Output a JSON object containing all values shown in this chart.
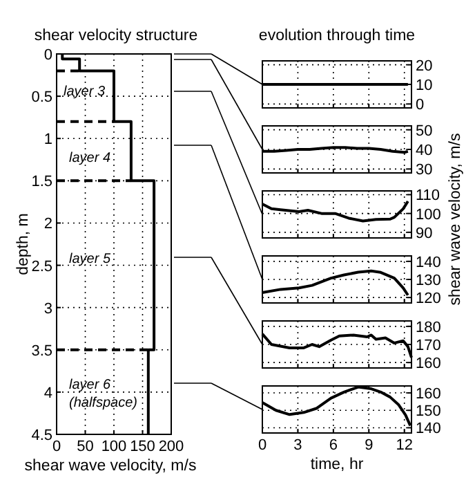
{
  "chart_data": [
    {
      "type": "line",
      "title": "shear velocity structure",
      "xlabel": "shear wave velocity, m/s",
      "ylabel": "depth, m",
      "series": [
        {
          "color": "#000000",
          "x": [
            10,
            10,
            40,
            40,
            100,
            100,
            130,
            130,
            170,
            170,
            160,
            160
          ],
          "values": [
            0,
            0.06,
            0.06,
            0.2,
            0.2,
            0.8,
            0.8,
            1.5,
            1.5,
            3.5,
            3.5,
            4.5
          ]
        }
      ],
      "xlim": [
        0,
        200
      ],
      "xticks": [
        0,
        50,
        100,
        150,
        200
      ],
      "ylim": [
        4.5,
        0
      ],
      "yticks": [
        0,
        0.5,
        1,
        1.5,
        2,
        2.5,
        3,
        3.5,
        4,
        4.5
      ],
      "grid": true,
      "ref_lines": [
        {
          "axis": "y",
          "value": 0.2,
          "line_style": "dashed"
        },
        {
          "axis": "y",
          "value": 0.8,
          "line_style": "dashed"
        },
        {
          "axis": "y",
          "value": 1.5,
          "line_style": "dashed"
        },
        {
          "axis": "y",
          "value": 3.5,
          "line_style": "dashed"
        }
      ],
      "annotations": [
        "layer 3",
        "layer 4",
        "layer 5",
        "layer 6",
        "(halfspace)"
      ]
    },
    {
      "type": "line",
      "title": "evolution through time",
      "series": [
        {
          "color": "#000000",
          "x": [
            0,
            2,
            4,
            6,
            8,
            10,
            12.3
          ],
          "values": [
            10,
            10,
            10,
            10,
            10,
            10,
            10
          ]
        }
      ],
      "xlim": [
        0,
        12.6
      ],
      "xticks": [
        0,
        3,
        6,
        9,
        12
      ],
      "ylim": [
        -2,
        22
      ],
      "yticks": [
        0,
        10,
        20
      ],
      "grid": true,
      "tick_labels": "y"
    },
    {
      "type": "line",
      "series": [
        {
          "color": "#000000",
          "x": [
            0,
            1,
            2,
            3,
            4,
            5,
            6,
            7,
            8,
            9,
            10,
            11,
            12,
            12.3
          ],
          "values": [
            39,
            39,
            39.5,
            40,
            40,
            40.5,
            41,
            41,
            40.5,
            40.5,
            40,
            39,
            38.5,
            39
          ]
        }
      ],
      "xlim": [
        0,
        12.6
      ],
      "xticks": [
        0,
        3,
        6,
        9,
        12
      ],
      "ylim": [
        28,
        52
      ],
      "yticks": [
        30,
        40,
        50
      ],
      "grid": true,
      "tick_labels": "y"
    },
    {
      "type": "line",
      "ylabel": "shear wave velocity, m/s",
      "series": [
        {
          "color": "#000000",
          "x": [
            0,
            0.77,
            1.54,
            3.1,
            3.85,
            5,
            6.15,
            7.3,
            8.5,
            9.6,
            10.8,
            11.15,
            11.9,
            12.3
          ],
          "values": [
            105,
            102.5,
            102,
            101,
            101.7,
            100,
            100,
            97.5,
            96,
            96.8,
            97,
            98,
            102.5,
            106.5
          ]
        }
      ],
      "xlim": [
        0,
        12.6
      ],
      "xticks": [
        0,
        3,
        6,
        9,
        12
      ],
      "ylim": [
        87,
        112
      ],
      "yticks": [
        90,
        100,
        110
      ],
      "grid": true,
      "tick_labels": "y"
    },
    {
      "type": "line",
      "series": [
        {
          "color": "#000000",
          "x": [
            0,
            1.54,
            3.1,
            4.2,
            5.8,
            6.9,
            8.1,
            9.2,
            10,
            11.15,
            11.9,
            12.3
          ],
          "values": [
            122.7,
            124.5,
            125.3,
            126.7,
            130.7,
            132.5,
            134,
            134.7,
            133.9,
            130.7,
            125.3,
            121.3
          ]
        }
      ],
      "xlim": [
        0,
        12.6
      ],
      "xticks": [
        0,
        3,
        6,
        9,
        12
      ],
      "ylim": [
        117,
        143
      ],
      "yticks": [
        120,
        130,
        140
      ],
      "grid": true,
      "tick_labels": "y"
    },
    {
      "type": "line",
      "series": [
        {
          "color": "#000000",
          "x": [
            0,
            0.77,
            2.3,
            3.5,
            4.2,
            4.8,
            5.8,
            6.5,
            7.7,
            8.85,
            9.2,
            9.6,
            10.4,
            11.15,
            11.9,
            12.3,
            12.6
          ],
          "values": [
            175.8,
            170,
            168.1,
            168.1,
            170,
            168.8,
            172.4,
            174.7,
            175.2,
            174.2,
            175.2,
            172.9,
            173.6,
            170.8,
            172,
            168.8,
            162.8
          ]
        }
      ],
      "xlim": [
        0,
        12.6
      ],
      "xticks": [
        0,
        3,
        6,
        9,
        12
      ],
      "ylim": [
        157,
        183
      ],
      "yticks": [
        160,
        170,
        180
      ],
      "grid": true,
      "tick_labels": "y"
    },
    {
      "type": "line",
      "xlabel": "time, hr",
      "series": [
        {
          "color": "#000000",
          "x": [
            0,
            1.15,
            2.3,
            3.5,
            4.6,
            5.8,
            6.9,
            8.1,
            9.2,
            10,
            10.8,
            11.5,
            12.1,
            12.5
          ],
          "values": [
            154.5,
            150,
            147.6,
            148.8,
            151.2,
            157,
            160.5,
            163.4,
            162.4,
            160.5,
            157.6,
            153.3,
            147.3,
            141.2
          ]
        }
      ],
      "xlim": [
        0,
        12.6
      ],
      "xticks": [
        0,
        3,
        6,
        9,
        12
      ],
      "ylim": [
        137,
        164
      ],
      "yticks": [
        140,
        150,
        160
      ],
      "grid": true
    }
  ]
}
